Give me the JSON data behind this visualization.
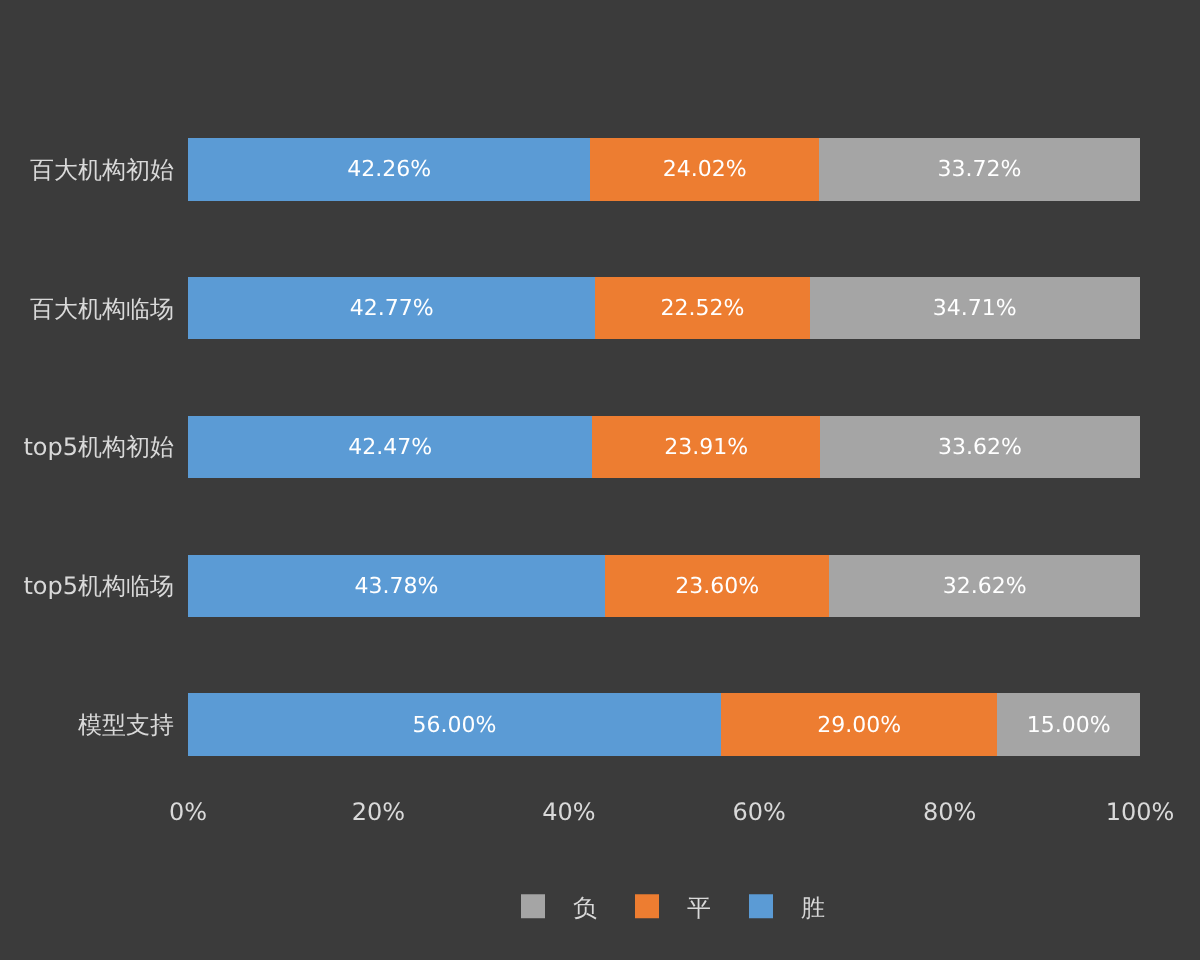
{
  "chart_data": {
    "type": "bar",
    "orientation": "horizontal",
    "stacked": true,
    "categories": [
      "百大机构初始",
      "百大机构临场",
      "top5机构初始",
      "top5机构临场",
      "模型支持"
    ],
    "series": [
      {
        "name": "胜",
        "color": "#5b9bd5",
        "values": [
          42.26,
          42.77,
          42.47,
          43.78,
          56.0
        ],
        "value_labels": [
          "42.26%",
          "42.77%",
          "42.47%",
          "43.78%",
          "56.00%"
        ]
      },
      {
        "name": "平",
        "color": "#ed7d31",
        "values": [
          24.02,
          22.52,
          23.91,
          23.6,
          29.0
        ],
        "value_labels": [
          "24.02%",
          "22.52%",
          "23.91%",
          "23.60%",
          "29.00%"
        ]
      },
      {
        "name": "负",
        "color": "#a5a5a5",
        "values": [
          33.72,
          34.71,
          33.62,
          32.62,
          15.0
        ],
        "value_labels": [
          "33.72%",
          "34.71%",
          "33.62%",
          "32.62%",
          "15.00%"
        ]
      }
    ],
    "xlim": [
      0,
      100
    ],
    "xticks": [
      {
        "value": 0,
        "label": "0%"
      },
      {
        "value": 20,
        "label": "20%"
      },
      {
        "value": 40,
        "label": "40%"
      },
      {
        "value": 60,
        "label": "60%"
      },
      {
        "value": 80,
        "label": "80%"
      },
      {
        "value": 100,
        "label": "100%"
      }
    ],
    "legend": "bottom",
    "grid": false
  }
}
